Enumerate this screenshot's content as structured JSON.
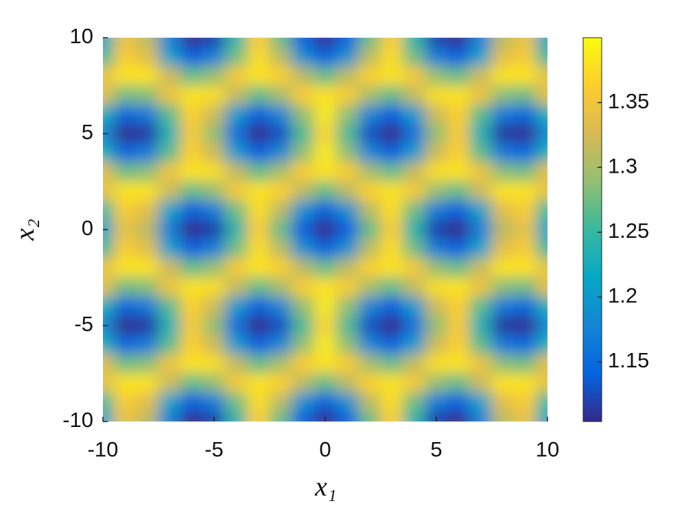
{
  "chart_data": {
    "type": "heatmap",
    "xlabel": "x₁",
    "ylabel": "x₂",
    "x": [
      -10,
      -9,
      -8,
      -7,
      -6,
      -5,
      -4,
      -3,
      -2,
      -1,
      0,
      1,
      2,
      3,
      4,
      5,
      6,
      7,
      8,
      9,
      10
    ],
    "y": [
      10,
      9,
      8,
      7,
      6,
      5,
      4,
      3,
      2,
      1,
      0,
      -1,
      -2,
      -3,
      -4,
      -5,
      -6,
      -7,
      -8,
      -9,
      -10
    ],
    "z": [
      [
        1.21,
        1.34,
        1.31,
        1.17,
        1.105,
        1.12,
        1.24,
        1.36,
        1.27,
        1.14,
        1.105,
        1.14,
        1.27,
        1.36,
        1.24,
        1.12,
        1.105,
        1.17,
        1.31,
        1.34,
        1.21
      ],
      [
        1.25,
        1.36,
        1.335,
        1.21,
        1.14,
        1.17,
        1.275,
        1.375,
        1.31,
        1.19,
        1.14,
        1.19,
        1.31,
        1.375,
        1.275,
        1.17,
        1.14,
        1.21,
        1.335,
        1.36,
        1.25
      ],
      [
        1.34,
        1.38,
        1.38,
        1.32,
        1.27,
        1.29,
        1.355,
        1.38,
        1.365,
        1.31,
        1.27,
        1.31,
        1.365,
        1.38,
        1.355,
        1.29,
        1.27,
        1.32,
        1.38,
        1.38,
        1.34
      ],
      [
        1.335,
        1.275,
        1.285,
        1.345,
        1.38,
        1.375,
        1.315,
        1.27,
        1.3,
        1.36,
        1.38,
        1.36,
        1.3,
        1.27,
        1.315,
        1.375,
        1.38,
        1.345,
        1.285,
        1.275,
        1.335
      ],
      [
        1.23,
        1.145,
        1.165,
        1.265,
        1.365,
        1.32,
        1.2,
        1.14,
        1.18,
        1.29,
        1.385,
        1.29,
        1.18,
        1.14,
        1.2,
        1.32,
        1.365,
        1.265,
        1.165,
        1.145,
        1.23
      ],
      [
        1.18,
        1.108,
        1.115,
        1.23,
        1.355,
        1.29,
        1.155,
        1.105,
        1.13,
        1.26,
        1.37,
        1.26,
        1.13,
        1.105,
        1.155,
        1.29,
        1.355,
        1.23,
        1.115,
        1.108,
        1.18
      ],
      [
        1.23,
        1.145,
        1.165,
        1.265,
        1.365,
        1.32,
        1.2,
        1.14,
        1.18,
        1.29,
        1.385,
        1.29,
        1.18,
        1.14,
        1.2,
        1.32,
        1.365,
        1.265,
        1.165,
        1.145,
        1.23
      ],
      [
        1.335,
        1.275,
        1.285,
        1.345,
        1.38,
        1.375,
        1.315,
        1.27,
        1.3,
        1.36,
        1.38,
        1.36,
        1.3,
        1.27,
        1.315,
        1.375,
        1.38,
        1.345,
        1.285,
        1.275,
        1.335
      ],
      [
        1.34,
        1.38,
        1.38,
        1.32,
        1.27,
        1.29,
        1.355,
        1.38,
        1.365,
        1.31,
        1.27,
        1.31,
        1.365,
        1.38,
        1.355,
        1.29,
        1.27,
        1.32,
        1.38,
        1.38,
        1.34
      ],
      [
        1.25,
        1.36,
        1.335,
        1.21,
        1.14,
        1.17,
        1.275,
        1.375,
        1.31,
        1.19,
        1.14,
        1.19,
        1.31,
        1.375,
        1.275,
        1.17,
        1.14,
        1.21,
        1.335,
        1.36,
        1.25
      ],
      [
        1.21,
        1.34,
        1.31,
        1.17,
        1.105,
        1.12,
        1.24,
        1.36,
        1.27,
        1.14,
        1.105,
        1.14,
        1.27,
        1.36,
        1.24,
        1.12,
        1.105,
        1.17,
        1.31,
        1.34,
        1.21
      ],
      [
        1.25,
        1.36,
        1.335,
        1.21,
        1.14,
        1.17,
        1.275,
        1.375,
        1.31,
        1.19,
        1.14,
        1.19,
        1.31,
        1.375,
        1.275,
        1.17,
        1.14,
        1.21,
        1.335,
        1.36,
        1.25
      ],
      [
        1.34,
        1.38,
        1.38,
        1.32,
        1.27,
        1.29,
        1.355,
        1.38,
        1.365,
        1.31,
        1.27,
        1.31,
        1.365,
        1.38,
        1.355,
        1.29,
        1.27,
        1.32,
        1.38,
        1.38,
        1.34
      ],
      [
        1.335,
        1.275,
        1.285,
        1.345,
        1.38,
        1.375,
        1.315,
        1.27,
        1.3,
        1.36,
        1.38,
        1.36,
        1.3,
        1.27,
        1.315,
        1.375,
        1.38,
        1.345,
        1.285,
        1.275,
        1.335
      ],
      [
        1.23,
        1.145,
        1.165,
        1.265,
        1.365,
        1.32,
        1.2,
        1.14,
        1.18,
        1.29,
        1.385,
        1.29,
        1.18,
        1.14,
        1.2,
        1.32,
        1.365,
        1.265,
        1.165,
        1.145,
        1.23
      ],
      [
        1.18,
        1.108,
        1.115,
        1.23,
        1.355,
        1.29,
        1.155,
        1.105,
        1.13,
        1.26,
        1.37,
        1.26,
        1.13,
        1.105,
        1.155,
        1.29,
        1.355,
        1.23,
        1.115,
        1.108,
        1.18
      ],
      [
        1.23,
        1.145,
        1.165,
        1.265,
        1.365,
        1.32,
        1.2,
        1.14,
        1.18,
        1.29,
        1.385,
        1.29,
        1.18,
        1.14,
        1.2,
        1.32,
        1.365,
        1.265,
        1.165,
        1.145,
        1.23
      ],
      [
        1.335,
        1.275,
        1.285,
        1.345,
        1.38,
        1.375,
        1.315,
        1.27,
        1.3,
        1.36,
        1.38,
        1.36,
        1.3,
        1.27,
        1.315,
        1.375,
        1.38,
        1.345,
        1.285,
        1.275,
        1.335
      ],
      [
        1.34,
        1.38,
        1.38,
        1.32,
        1.27,
        1.29,
        1.355,
        1.38,
        1.365,
        1.31,
        1.27,
        1.31,
        1.365,
        1.38,
        1.355,
        1.29,
        1.27,
        1.32,
        1.38,
        1.38,
        1.34
      ],
      [
        1.25,
        1.36,
        1.335,
        1.21,
        1.14,
        1.17,
        1.275,
        1.375,
        1.31,
        1.19,
        1.14,
        1.19,
        1.31,
        1.375,
        1.275,
        1.17,
        1.14,
        1.21,
        1.335,
        1.36,
        1.25
      ],
      [
        1.21,
        1.34,
        1.31,
        1.17,
        1.105,
        1.12,
        1.24,
        1.36,
        1.27,
        1.14,
        1.105,
        1.14,
        1.27,
        1.36,
        1.24,
        1.12,
        1.105,
        1.17,
        1.31,
        1.34,
        1.21
      ]
    ],
    "xlim": [
      -10,
      10
    ],
    "ylim": [
      -10,
      10
    ],
    "xticks": [
      -10,
      -5,
      0,
      5,
      10
    ],
    "yticks": [
      -10,
      -5,
      0,
      5,
      10
    ],
    "colormap": "parula",
    "smooth": true,
    "clim": [
      1.104,
      1.4
    ],
    "cticks": [
      1.15,
      1.2,
      1.25,
      1.3,
      1.35
    ]
  }
}
